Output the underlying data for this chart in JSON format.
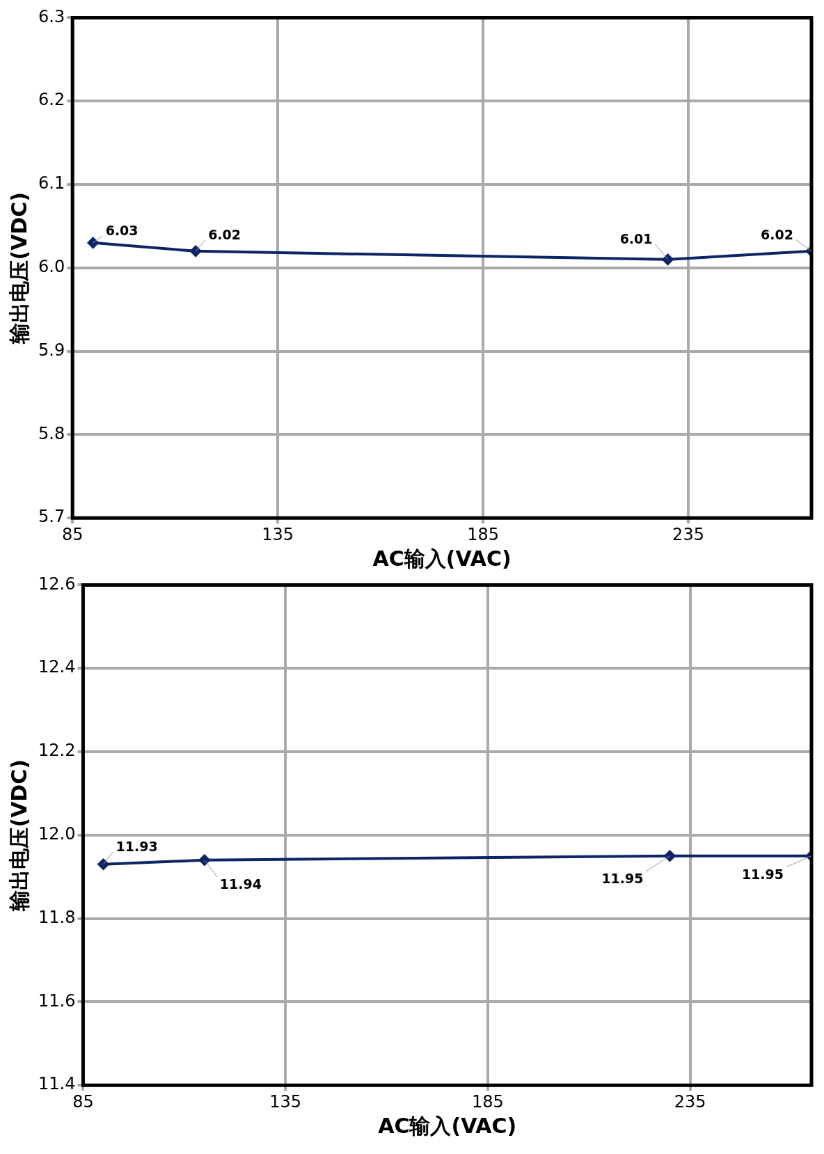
{
  "chart_data": [
    {
      "type": "line",
      "xlabel": "AC输入(VAC)",
      "ylabel": "输出电压(VDC)",
      "x": [
        90,
        115,
        230,
        265
      ],
      "xlim": [
        85,
        265
      ],
      "xticks": [
        85,
        135,
        185,
        235
      ],
      "ylim": [
        5.7,
        6.3
      ],
      "yticks": [
        5.7,
        5.8,
        5.9,
        {
          "value": 6,
          "label": "6.0"
        },
        6.1,
        6.2,
        6.3
      ],
      "series": [
        {
          "color": "#0d2466",
          "values": [
            6.03,
            6.02,
            6.01,
            6.02
          ]
        }
      ],
      "data_labels": true,
      "grid": true,
      "legend": false,
      "marker": "diamond",
      "line_style": "solid"
    },
    {
      "type": "line",
      "xlabel": "AC输入(VAC)",
      "ylabel": "输出电压(VDC)",
      "x": [
        90,
        115,
        230,
        265
      ],
      "xlim": [
        85,
        265
      ],
      "xticks": [
        85,
        135,
        185,
        235
      ],
      "ylim": [
        11.4,
        12.6
      ],
      "yticks": [
        11.4,
        11.6,
        11.8,
        {
          "value": 12,
          "label": "12.0"
        },
        12.2,
        12.4,
        12.6
      ],
      "series": [
        {
          "color": "#0d2466",
          "values": [
            11.93,
            11.94,
            11.95,
            11.95
          ]
        }
      ],
      "data_labels": true,
      "grid": true,
      "legend": false,
      "marker": "diamond",
      "line_style": "solid"
    }
  ]
}
